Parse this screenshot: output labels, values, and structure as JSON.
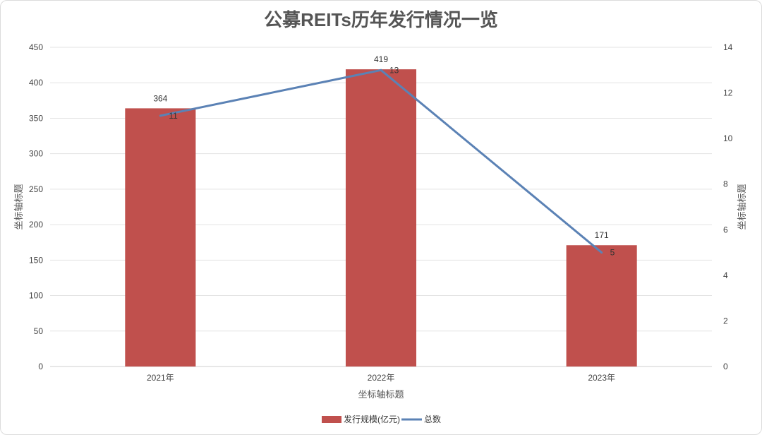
{
  "chart_data": {
    "type": "bar",
    "title": "公募REITs历年发行情况一览",
    "categories": [
      "2021年",
      "2022年",
      "2023年"
    ],
    "xlabel": "坐标轴标题",
    "ylabel": "坐标轴标题",
    "y2label": "坐标轴标题",
    "ylim": [
      0,
      450
    ],
    "y_ticks": [
      0,
      50,
      100,
      150,
      200,
      250,
      300,
      350,
      400,
      450
    ],
    "y2lim": [
      0,
      14
    ],
    "y2_ticks": [
      0,
      2,
      4,
      6,
      8,
      10,
      12,
      14
    ],
    "grid": true,
    "legend_position": "bottom",
    "series": [
      {
        "name": "发行规模(亿元)",
        "type": "bar",
        "axis": "left",
        "color": "#c0504d",
        "values": [
          364,
          419,
          171
        ]
      },
      {
        "name": "总数",
        "type": "line",
        "axis": "right",
        "color": "#5b82b5",
        "values": [
          11,
          13,
          5
        ]
      }
    ]
  }
}
